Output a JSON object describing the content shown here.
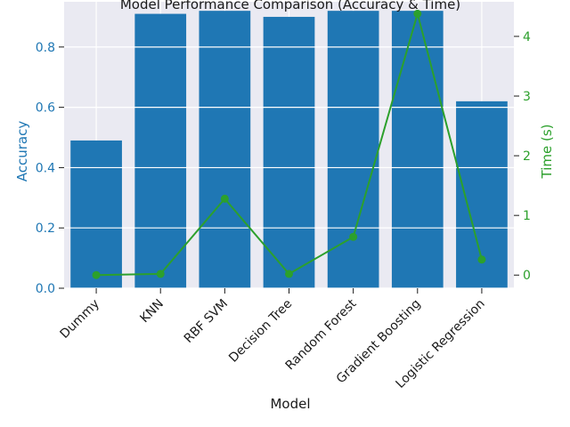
{
  "chart_data": {
    "type": "bar",
    "title": "Model Performance Comparison (Accuracy & Time)",
    "xlabel": "Model",
    "ylabel": "Accuracy",
    "y2label": "Time (s)",
    "categories": [
      "Dummy",
      "KNN",
      "RBF SVM",
      "Decision Tree",
      "Random Forest",
      "Gradient Boosting",
      "Logistic Regression"
    ],
    "series": [
      {
        "name": "Accuracy",
        "type": "bar",
        "axis": "left",
        "values": [
          0.49,
          0.91,
          0.92,
          0.9,
          0.92,
          0.92,
          0.62
        ]
      },
      {
        "name": "Time (s)",
        "type": "line",
        "axis": "right",
        "values": [
          0.0,
          0.02,
          1.28,
          0.02,
          0.64,
          4.38,
          0.26
        ]
      }
    ],
    "ylim": [
      0,
      0.95
    ],
    "y2lim": [
      -0.22,
      4.58
    ],
    "yticks": [
      "0.0",
      "0.2",
      "0.4",
      "0.6",
      "0.8"
    ],
    "y2ticks": [
      "0",
      "1",
      "2",
      "3",
      "4"
    ],
    "grid": true
  },
  "colors": {
    "bar": "#1f77b4",
    "line": "#2ca02c",
    "left_axis": "#1f77b4",
    "right_axis": "#2ca02c",
    "background": "#eaeaf2",
    "grid": "#ffffff",
    "text": "#1a1a1a"
  }
}
